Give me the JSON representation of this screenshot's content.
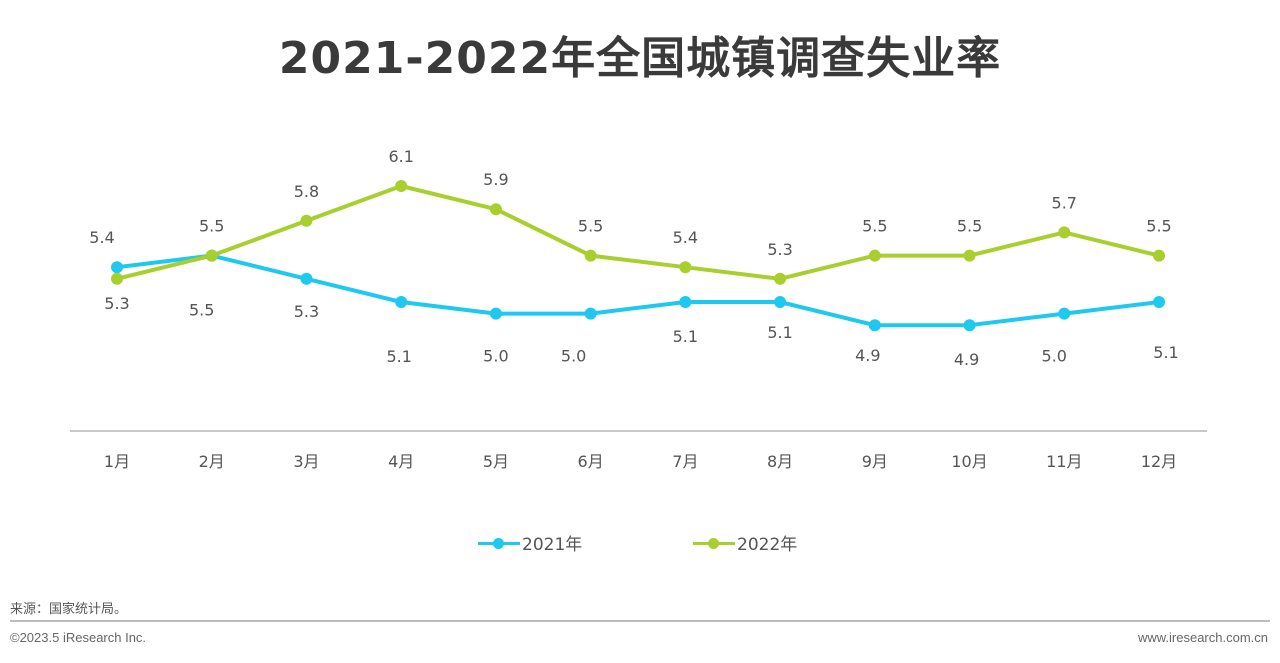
{
  "page": {
    "title": "2021-2022年全国城镇调查失业率",
    "source": "来源：国家统计局。",
    "copyright": "©2023.5 iResearch Inc.",
    "website": "www.iresearch.com.cn"
  },
  "colors": {
    "series_2021": "#1fc8ef",
    "series_2022": "#a8cf2e",
    "axis": "#c8c8c8",
    "label": "#555555"
  },
  "chart_data": {
    "type": "line",
    "title": "2021-2022年全国城镇调查失业率",
    "xlabel": "",
    "ylabel": "",
    "categories": [
      "1月",
      "2月",
      "3月",
      "4月",
      "5月",
      "6月",
      "7月",
      "8月",
      "9月",
      "10月",
      "11月",
      "12月"
    ],
    "series": [
      {
        "name": "2021年",
        "values": [
          5.4,
          5.5,
          5.3,
          5.1,
          5.0,
          5.0,
          5.1,
          5.1,
          4.9,
          4.9,
          5.0,
          5.1
        ],
        "labels": [
          "5.4",
          "5.5",
          "5.3",
          "5.1",
          "5.0",
          "5.0",
          "5.1",
          "5.1",
          "4.9",
          "4.9",
          "5.0",
          "5.1"
        ]
      },
      {
        "name": "2022年",
        "values": [
          5.3,
          5.5,
          5.8,
          6.1,
          5.9,
          5.5,
          5.4,
          5.3,
          5.5,
          5.5,
          5.7,
          5.5
        ],
        "labels": [
          "5.3",
          "5.5",
          "5.8",
          "6.1",
          "5.9",
          "5.5",
          "5.4",
          "5.3",
          "5.5",
          "5.5",
          "5.7",
          "5.5"
        ]
      }
    ],
    "ylim": [
      4.0,
      6.5
    ],
    "grid": false,
    "legend": "bottom-center"
  }
}
